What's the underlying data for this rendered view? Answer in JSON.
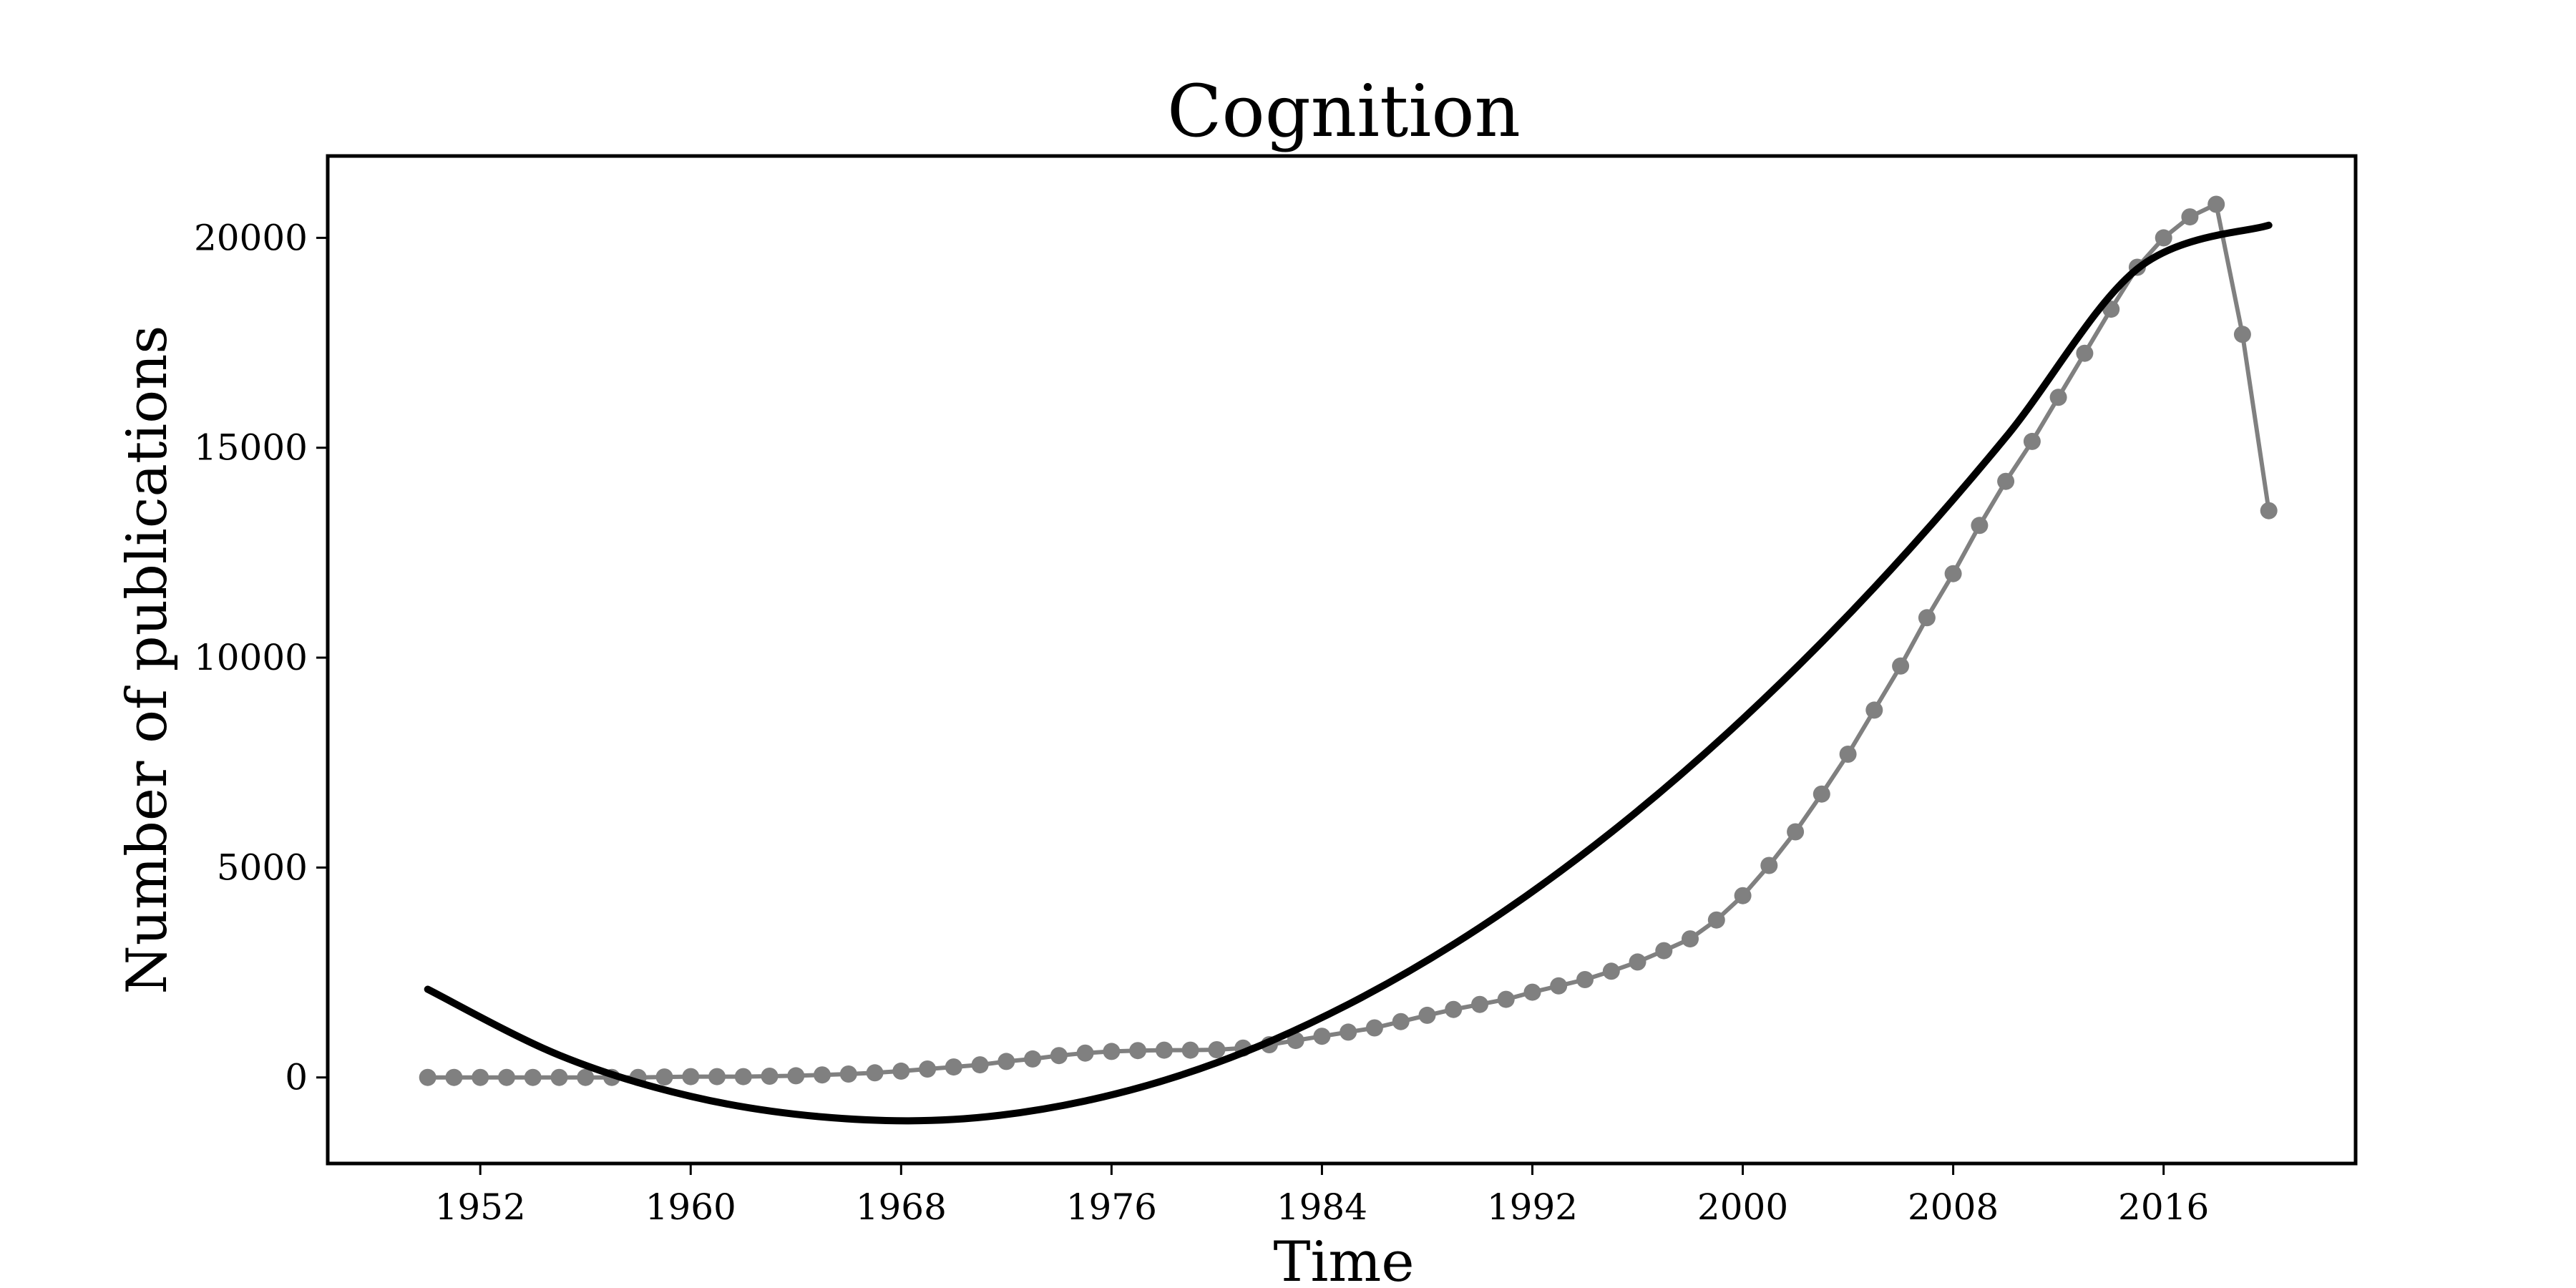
{
  "chart_data": {
    "type": "line",
    "title": "Cognition",
    "xlabel": "Time",
    "ylabel": "Number of publications",
    "xlim": [
      1946.2,
      2023.3
    ],
    "ylim": [
      -2050,
      21950
    ],
    "xticks": [
      1952,
      1960,
      1968,
      1976,
      1984,
      1992,
      2000,
      2008,
      2016
    ],
    "yticks": [
      0,
      5000,
      10000,
      15000,
      20000
    ],
    "grid": false,
    "legend": "none",
    "series": [
      {
        "style": "line-markers",
        "color": "#808080",
        "x": [
          1950,
          1951,
          1952,
          1953,
          1954,
          1955,
          1956,
          1957,
          1958,
          1959,
          1960,
          1961,
          1962,
          1963,
          1964,
          1965,
          1966,
          1967,
          1968,
          1969,
          1970,
          1971,
          1972,
          1973,
          1974,
          1975,
          1976,
          1977,
          1978,
          1979,
          1980,
          1981,
          1982,
          1983,
          1984,
          1985,
          1986,
          1987,
          1988,
          1989,
          1990,
          1991,
          1992,
          1993,
          1994,
          1995,
          1996,
          1997,
          1998,
          1999,
          2000,
          2001,
          2002,
          2003,
          2004,
          2005,
          2006,
          2007,
          2008,
          2009,
          2010,
          2011,
          2012,
          2013,
          2014,
          2015,
          2016,
          2017,
          2018,
          2019,
          2020
        ],
        "values": [
          0,
          0,
          0,
          0,
          0,
          0,
          0,
          0,
          0,
          10,
          20,
          20,
          20,
          30,
          40,
          60,
          80,
          110,
          150,
          200,
          250,
          300,
          380,
          440,
          520,
          580,
          620,
          640,
          650,
          650,
          660,
          700,
          780,
          880,
          980,
          1080,
          1180,
          1330,
          1480,
          1620,
          1740,
          1860,
          2030,
          2180,
          2330,
          2530,
          2750,
          3020,
          3300,
          3750,
          4330,
          5050,
          5850,
          6750,
          7700,
          8750,
          9800,
          10950,
          12000,
          13150,
          14200,
          15150,
          16200,
          17250,
          18300,
          19300,
          20000,
          20500,
          20800,
          17700,
          13500
        ]
      },
      {
        "style": "line",
        "color": "#000000",
        "fit": "quadratic",
        "x": [
          1950,
          1955,
          1960,
          1965,
          1970,
          1975,
          1980,
          1985,
          1990,
          1995,
          2000,
          2005,
          2010,
          2015,
          2020
        ],
        "values": [
          2100,
          530,
          -450,
          -940,
          -1000,
          -560,
          350,
          1740,
          3570,
          5840,
          8540,
          11670,
          15250,
          19260,
          20300
        ]
      }
    ]
  }
}
